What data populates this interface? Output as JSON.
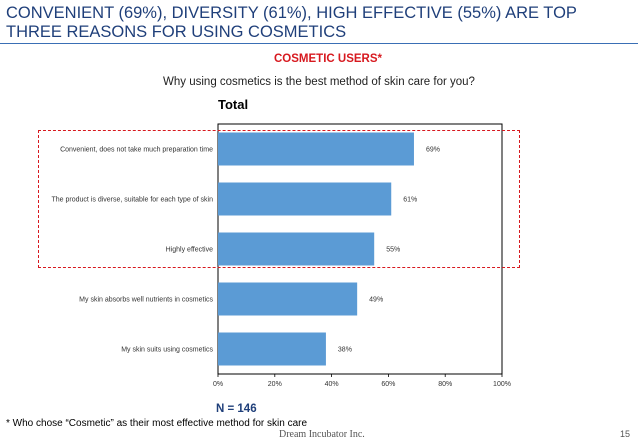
{
  "slide": {
    "title": "CONVENIENT (69%), DIVERSITY (61%), HIGH EFFECTIVE (55%) ARE TOP THREE REASONS FOR USING COSMETICS",
    "subtitle": "COSMETIC USERS*",
    "question": "Why using cosmetics is the best method of skin care for you?",
    "sample_size": "N = 146",
    "footnote": "* Who chose “Cosmetic” as their most effective method for skin care",
    "company": "Dream Incubator Inc.",
    "page_number": "15",
    "accent_color": "#d7191f",
    "title_color": "#1f3f7a"
  },
  "chart_data": {
    "type": "bar",
    "orientation": "horizontal",
    "title": "Total",
    "categories": [
      "Convenient, does not take much preparation time",
      "The product is diverse, suitable for each type of skin",
      "Highly effective",
      "My skin absorbs well nutrients in cosmetics",
      "My skin suits using cosmetics"
    ],
    "values": [
      69,
      61,
      55,
      49,
      38
    ],
    "value_labels": [
      "69%",
      "61%",
      "55%",
      "49%",
      "38%"
    ],
    "xlim": [
      0,
      100
    ],
    "xticks": [
      0,
      20,
      40,
      60,
      80,
      100
    ],
    "xtick_labels": [
      "0%",
      "20%",
      "40%",
      "60%",
      "80%",
      "100%"
    ],
    "bar_color": "#5b9bd5",
    "highlighted_top_n": 3
  }
}
